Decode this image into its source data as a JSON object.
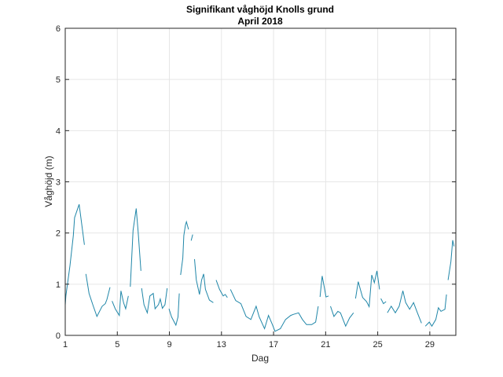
{
  "chart_data": {
    "type": "line",
    "title": "Signifikant våghöjd Knolls grund",
    "subtitle": "April 2018",
    "xlabel": "Dag",
    "ylabel": "Våghöjd (m)",
    "xlim": [
      1,
      31
    ],
    "ylim": [
      0,
      6
    ],
    "xticks": [
      1,
      5,
      9,
      13,
      17,
      21,
      25,
      29
    ],
    "yticks": [
      0,
      1,
      2,
      3,
      4,
      5,
      6
    ],
    "grid": true,
    "line_color": "#1f86a8",
    "series": [
      {
        "name": "Våghöjd",
        "x": [
          1.0,
          1.05,
          1.36,
          1.62,
          1.72,
          2.07,
          2.2,
          2.47,
          null,
          2.59,
          2.83,
          3.13,
          3.43,
          3.84,
          4.08,
          4.2,
          4.44,
          null,
          4.6,
          4.84,
          5.15,
          5.28,
          5.48,
          5.64,
          5.85,
          null,
          6.0,
          6.21,
          6.45,
          6.6,
          6.81,
          null,
          6.87,
          7.05,
          7.3,
          7.5,
          7.76,
          7.9,
          8.16,
          8.3,
          8.46,
          8.66,
          8.83,
          null,
          8.97,
          9.17,
          9.5,
          9.66,
          9.76,
          null,
          9.86,
          10.03,
          10.11,
          10.23,
          10.31,
          10.47,
          null,
          10.67,
          10.79,
          null,
          10.93,
          11.07,
          11.31,
          11.47,
          11.63,
          11.77,
          12.07,
          12.37,
          null,
          12.59,
          12.85,
          13.13,
          13.29,
          13.45,
          null,
          13.69,
          14.09,
          14.49,
          14.89,
          15.26,
          15.66,
          15.9,
          16.31,
          16.61,
          16.91,
          17.11,
          17.52,
          17.92,
          18.32,
          18.52,
          18.92,
          19.22,
          19.53,
          19.93,
          20.23,
          20.43,
          null,
          20.57,
          20.73,
          20.89,
          21.03,
          21.23,
          null,
          21.37,
          21.64,
          21.94,
          22.14,
          22.34,
          22.54,
          22.84,
          23.14,
          null,
          23.3,
          23.5,
          23.64,
          23.84,
          24.14,
          24.34,
          24.54,
          24.74,
          24.94,
          25.14,
          null,
          25.24,
          25.44,
          25.64,
          null,
          25.74,
          26.04,
          26.35,
          26.65,
          26.93,
          27.15,
          27.45,
          27.75,
          28.05,
          28.36,
          null,
          28.66,
          28.96,
          29.16,
          29.46,
          29.66,
          29.86,
          30.16,
          30.28,
          null,
          30.4,
          30.62,
          30.76,
          30.86
        ],
        "y": [
          0.59,
          0.77,
          1.36,
          1.95,
          2.3,
          2.56,
          2.3,
          1.77,
          null,
          1.2,
          0.82,
          0.59,
          0.37,
          0.57,
          0.62,
          0.7,
          0.94,
          null,
          0.67,
          0.52,
          0.39,
          0.87,
          0.64,
          0.52,
          0.77,
          null,
          0.95,
          2.05,
          2.48,
          2.02,
          1.26,
          null,
          0.92,
          0.6,
          0.44,
          0.77,
          0.82,
          0.52,
          0.6,
          0.71,
          0.53,
          0.6,
          0.92,
          null,
          0.52,
          0.36,
          0.2,
          0.36,
          0.82,
          null,
          1.18,
          1.51,
          1.95,
          2.15,
          2.22,
          2.07,
          null,
          1.85,
          1.97,
          null,
          1.49,
          1.08,
          0.8,
          1.08,
          1.2,
          0.9,
          0.69,
          0.64,
          null,
          1.08,
          0.9,
          0.77,
          0.8,
          0.74,
          null,
          0.9,
          0.68,
          0.62,
          0.37,
          0.31,
          0.57,
          0.36,
          0.13,
          0.39,
          0.21,
          0.08,
          0.13,
          0.31,
          0.39,
          0.41,
          0.44,
          0.31,
          0.21,
          0.21,
          0.26,
          0.57,
          null,
          0.75,
          1.16,
          0.95,
          0.75,
          0.77,
          null,
          0.57,
          0.37,
          0.47,
          0.44,
          0.31,
          0.18,
          0.34,
          0.44,
          null,
          0.72,
          1.05,
          0.92,
          0.74,
          0.66,
          0.56,
          1.18,
          1.03,
          1.26,
          0.9,
          null,
          0.72,
          0.62,
          0.66,
          null,
          0.44,
          0.57,
          0.44,
          0.57,
          0.87,
          0.64,
          0.51,
          0.64,
          0.44,
          0.24,
          null,
          0.18,
          0.26,
          0.18,
          0.31,
          0.54,
          0.47,
          0.51,
          0.8,
          null,
          1.08,
          1.44,
          1.86,
          1.74
        ]
      }
    ]
  }
}
